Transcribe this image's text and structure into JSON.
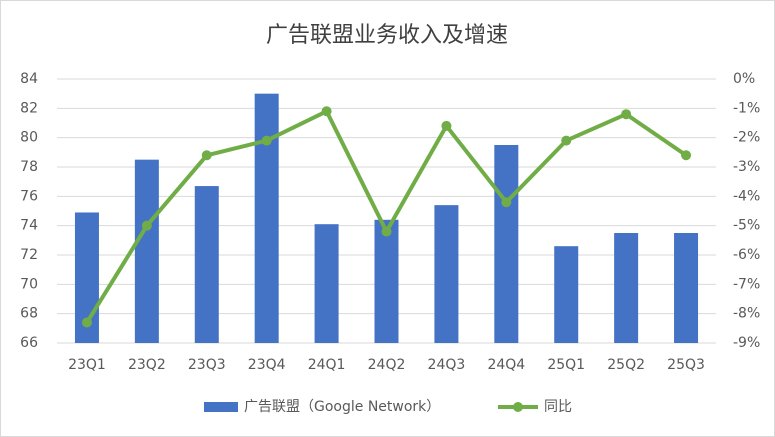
{
  "chart_data": {
    "type": "combo",
    "title": "广告联盟业务收入及增速",
    "categories": [
      "23Q1",
      "23Q2",
      "23Q3",
      "23Q4",
      "24Q1",
      "24Q2",
      "24Q3",
      "24Q4",
      "25Q1",
      "25Q2",
      "25Q3"
    ],
    "series": [
      {
        "name": "广告联盟（Google Network）",
        "type": "bar",
        "color": "#4472c4",
        "values": [
          74.9,
          78.5,
          76.7,
          83.0,
          74.1,
          74.4,
          75.4,
          79.5,
          72.6,
          73.5,
          73.5
        ]
      },
      {
        "name": "同比",
        "type": "line",
        "axis": "y2",
        "color": "#70ad47",
        "values": [
          -8.3,
          -5.0,
          -2.6,
          -2.1,
          -1.1,
          -5.2,
          -1.6,
          -4.2,
          -2.1,
          -1.2,
          -2.6
        ]
      }
    ],
    "ylim": [
      66,
      84
    ],
    "yticks": [
      66,
      68,
      70,
      72,
      74,
      76,
      78,
      80,
      82,
      84
    ],
    "y2lim": [
      -9,
      0
    ],
    "y2ticks": [
      {
        "value": -9,
        "label": "-9%"
      },
      {
        "value": -8,
        "label": "-8%"
      },
      {
        "value": -7,
        "label": "-7%"
      },
      {
        "value": -6,
        "label": "-6%"
      },
      {
        "value": -5,
        "label": "-5%"
      },
      {
        "value": -4,
        "label": "-4%"
      },
      {
        "value": -3,
        "label": "-3%"
      },
      {
        "value": -2,
        "label": "-2%"
      },
      {
        "value": -1,
        "label": "-1%"
      },
      {
        "value": 0,
        "label": "0%"
      }
    ],
    "grid": true,
    "legend": "bottom"
  }
}
